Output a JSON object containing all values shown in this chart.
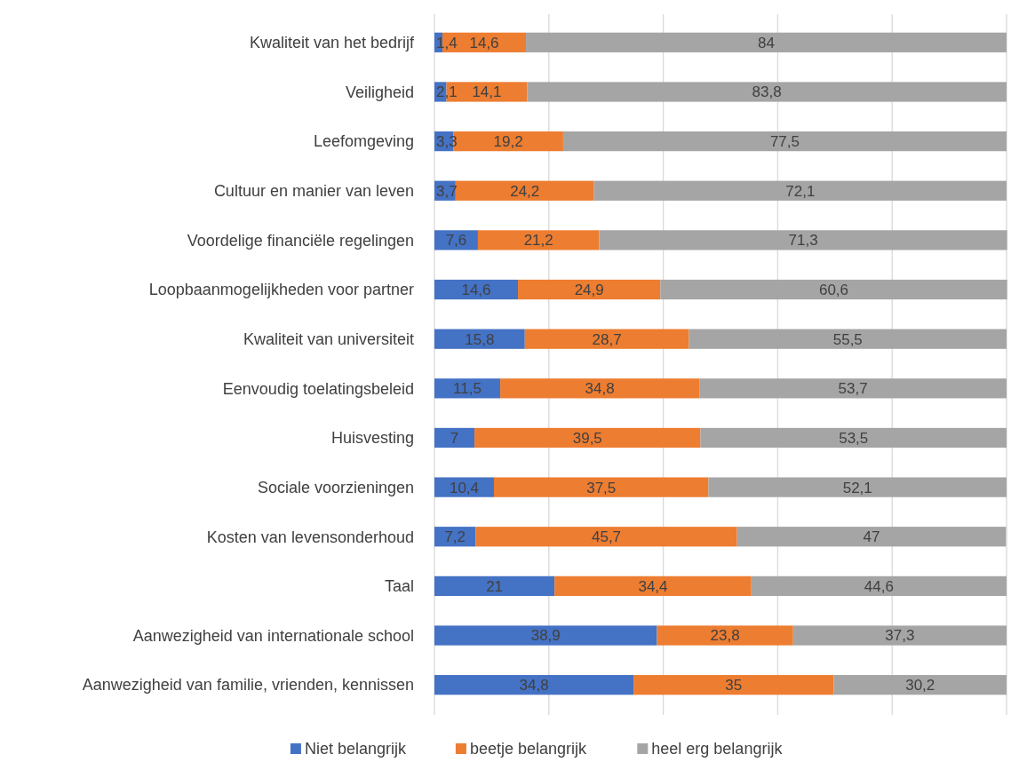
{
  "chart_data": {
    "type": "bar",
    "orientation": "horizontal",
    "stacked": true,
    "categories": [
      "Kwaliteit van het bedrijf",
      "Veiligheid",
      "Leefomgeving",
      "Cultuur en manier van leven",
      "Voordelige financiële regelingen",
      "Loopbaanmogelijkheden voor partner",
      "Kwaliteit van universiteit",
      "Eenvoudig toelatingsbeleid",
      "Huisvesting",
      "Sociale voorzieningen",
      "Kosten van levensonderhoud",
      "Taal",
      "Aanwezigheid van internationale school",
      "Aanwezigheid van familie, vrienden, kennissen"
    ],
    "series": [
      {
        "name": "Niet belangrijk",
        "color": "#4472c4",
        "values": [
          1.4,
          2.1,
          3.3,
          3.7,
          7.6,
          14.6,
          15.8,
          11.5,
          7,
          10.4,
          7.2,
          21,
          38.9,
          34.8
        ],
        "value_labels": [
          "1,4",
          "2,1",
          "3,3",
          "3,7",
          "7,6",
          "14,6",
          "15,8",
          "11,5",
          "7",
          "10,4",
          "7,2",
          "21",
          "38,9",
          "34,8"
        ]
      },
      {
        "name": "beetje belangrijk",
        "color": "#ed7d31",
        "values": [
          14.6,
          14.1,
          19.2,
          24.2,
          21.2,
          24.9,
          28.7,
          34.8,
          39.5,
          37.5,
          45.7,
          34.4,
          23.8,
          35
        ],
        "value_labels": [
          "14,6",
          "14,1",
          "19,2",
          "24,2",
          "21,2",
          "24,9",
          "28,7",
          "34,8",
          "39,5",
          "37,5",
          "45,7",
          "34,4",
          "23,8",
          "35"
        ]
      },
      {
        "name": "heel erg belangrijk",
        "color": "#a5a5a5",
        "values": [
          84,
          83.8,
          77.5,
          72.1,
          71.3,
          60.6,
          55.5,
          53.7,
          53.5,
          52.1,
          47,
          44.6,
          37.3,
          30.2
        ],
        "value_labels": [
          "84",
          "83,8",
          "77,5",
          "72,1",
          "71,3",
          "60,6",
          "55,5",
          "53,7",
          "53,5",
          "52,1",
          "47",
          "44,6",
          "37,3",
          "30,2"
        ]
      }
    ],
    "xlim": [
      0,
      100
    ],
    "xticks": [
      {
        "value": 0,
        "label": null
      },
      {
        "value": 20,
        "label": null
      },
      {
        "value": 40,
        "label": null
      },
      {
        "value": 60,
        "label": null
      },
      {
        "value": 80,
        "label": null
      },
      {
        "value": 100,
        "label": null
      }
    ],
    "tick_labels": "y",
    "grid": "x",
    "legend": "bottom"
  }
}
